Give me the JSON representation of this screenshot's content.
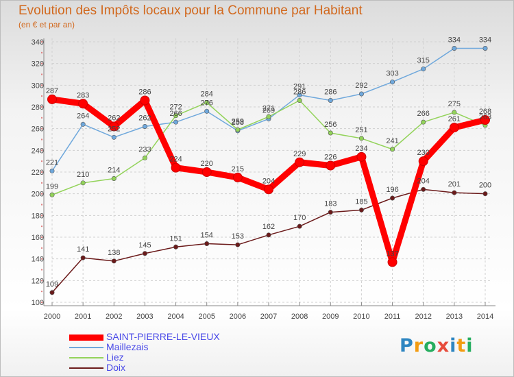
{
  "title": "Evolution des Impôts locaux pour la Commune par Habitant",
  "subtitle": "(en € et par an)",
  "brand": {
    "letters": [
      "P",
      "r",
      "o",
      "x",
      "i",
      "t",
      "i"
    ],
    "colors": [
      "#2e86c1",
      "#f39c12",
      "#27ae60",
      "#e74c3c",
      "#2e86c1",
      "#f39c12",
      "#27ae60"
    ]
  },
  "chart_data": {
    "type": "line",
    "title": "Evolution des Impôts locaux pour la Commune par Habitant",
    "ylabel": "(en € et par an)",
    "xlabel": "",
    "categories": [
      "2000",
      "2001",
      "2002",
      "2003",
      "2004",
      "2005",
      "2006",
      "2007",
      "2008",
      "2009",
      "2010",
      "2011",
      "2012",
      "2013",
      "2014"
    ],
    "yticks": [
      100,
      120,
      140,
      160,
      180,
      200,
      220,
      240,
      260,
      280,
      300,
      320,
      340
    ],
    "ylim": [
      100,
      340
    ],
    "grid": true,
    "legend_position": "bottom-left",
    "series": [
      {
        "name": "SAINT-PIERRE-LE-VIEUX",
        "color": "#ff0000",
        "emphasis": true,
        "values": [
          287,
          283,
          262,
          286,
          224,
          220,
          215,
          204,
          229,
          226,
          234,
          137,
          230,
          261,
          268
        ]
      },
      {
        "name": "Maillezais",
        "color": "#6fa8dc",
        "values": [
          221,
          264,
          252,
          262,
          266,
          276,
          258,
          269,
          291,
          286,
          292,
          303,
          315,
          334,
          334
        ]
      },
      {
        "name": "Liez",
        "color": "#93d35a",
        "values": [
          199,
          210,
          214,
          233,
          272,
          284,
          259,
          271,
          286,
          256,
          251,
          241,
          266,
          275,
          263
        ]
      },
      {
        "name": "Doix",
        "color": "#6b1a1a",
        "values": [
          109,
          141,
          138,
          145,
          151,
          154,
          153,
          162,
          170,
          183,
          185,
          196,
          204,
          201,
          200
        ]
      }
    ]
  }
}
